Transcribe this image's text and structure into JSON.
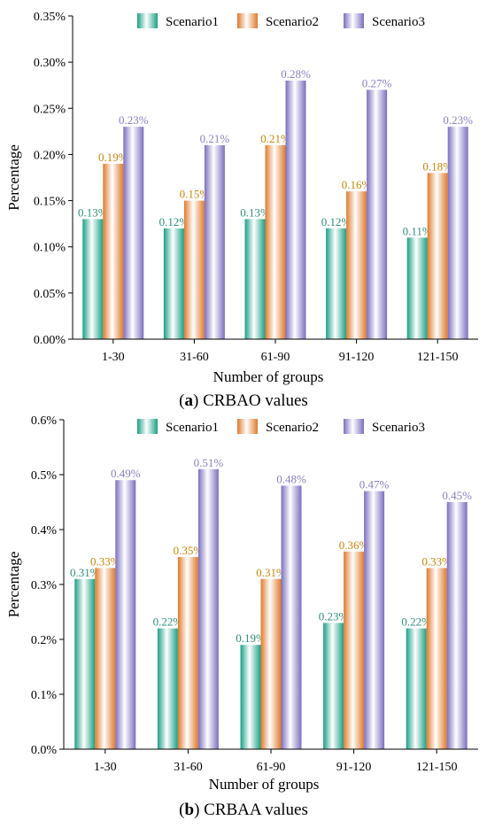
{
  "colors": {
    "scenario1": "#1aa085",
    "scenario2": "#e07a2a",
    "scenario3": "#7a6fbf",
    "label1": "#2e8f7e",
    "label2": "#c8860a",
    "label3": "#8a80c4"
  },
  "chart_data": [
    {
      "type": "bar",
      "caption_letter": "a",
      "caption_text": " CRBAO values",
      "xlabel": "Number of groups",
      "ylabel": "Percentage",
      "ylim": [
        0,
        0.35
      ],
      "yticks": [
        0,
        0.05,
        0.1,
        0.15,
        0.2,
        0.25,
        0.3,
        0.35
      ],
      "ytick_labels": [
        "0.00%",
        "0.05%",
        "0.10%",
        "0.15%",
        "0.20%",
        "0.25%",
        "0.30%",
        "0.35%"
      ],
      "categories": [
        "1-30",
        "31-60",
        "61-90",
        "91-120",
        "121-150"
      ],
      "legend_position": "top",
      "series": [
        {
          "name": "Scenario1",
          "values": [
            0.13,
            0.12,
            0.13,
            0.12,
            0.11
          ],
          "labels": [
            "0.13%",
            "0.12%",
            "0.13%",
            "0.12%",
            "0.11%"
          ]
        },
        {
          "name": "Scenario2",
          "values": [
            0.19,
            0.15,
            0.21,
            0.16,
            0.18
          ],
          "labels": [
            "0.19%",
            "0.15%",
            "0.21%",
            "0.16%",
            "0.18%"
          ]
        },
        {
          "name": "Scenario3",
          "values": [
            0.23,
            0.21,
            0.28,
            0.27,
            0.23
          ],
          "labels": [
            "0.23%",
            "0.21%",
            "0.28%",
            "0.27%",
            "0.23%"
          ]
        }
      ]
    },
    {
      "type": "bar",
      "caption_letter": "b",
      "caption_text": " CRBAA values",
      "xlabel": "Number of groups",
      "ylabel": "Percentage",
      "ylim": [
        0,
        0.6
      ],
      "yticks": [
        0,
        0.1,
        0.2,
        0.3,
        0.4,
        0.5,
        0.6
      ],
      "ytick_labels": [
        "0.0%",
        "0.1%",
        "0.2%",
        "0.3%",
        "0.4%",
        "0.5%",
        "0.6%"
      ],
      "categories": [
        "1-30",
        "31-60",
        "61-90",
        "91-120",
        "121-150"
      ],
      "legend_position": "top",
      "series": [
        {
          "name": "Scenario1",
          "values": [
            0.31,
            0.22,
            0.19,
            0.23,
            0.22
          ],
          "labels": [
            "0.31%",
            "0.22%",
            "0.19%",
            "0.23%",
            "0.22%"
          ]
        },
        {
          "name": "Scenario2",
          "values": [
            0.33,
            0.35,
            0.31,
            0.36,
            0.33
          ],
          "labels": [
            "0.33%",
            "0.35%",
            "0.31%",
            "0.36%",
            "0.33%"
          ]
        },
        {
          "name": "Scenario3",
          "values": [
            0.49,
            0.51,
            0.48,
            0.47,
            0.45
          ],
          "labels": [
            "0.49%",
            "0.51%",
            "0.48%",
            "0.47%",
            "0.45%"
          ]
        }
      ]
    }
  ]
}
